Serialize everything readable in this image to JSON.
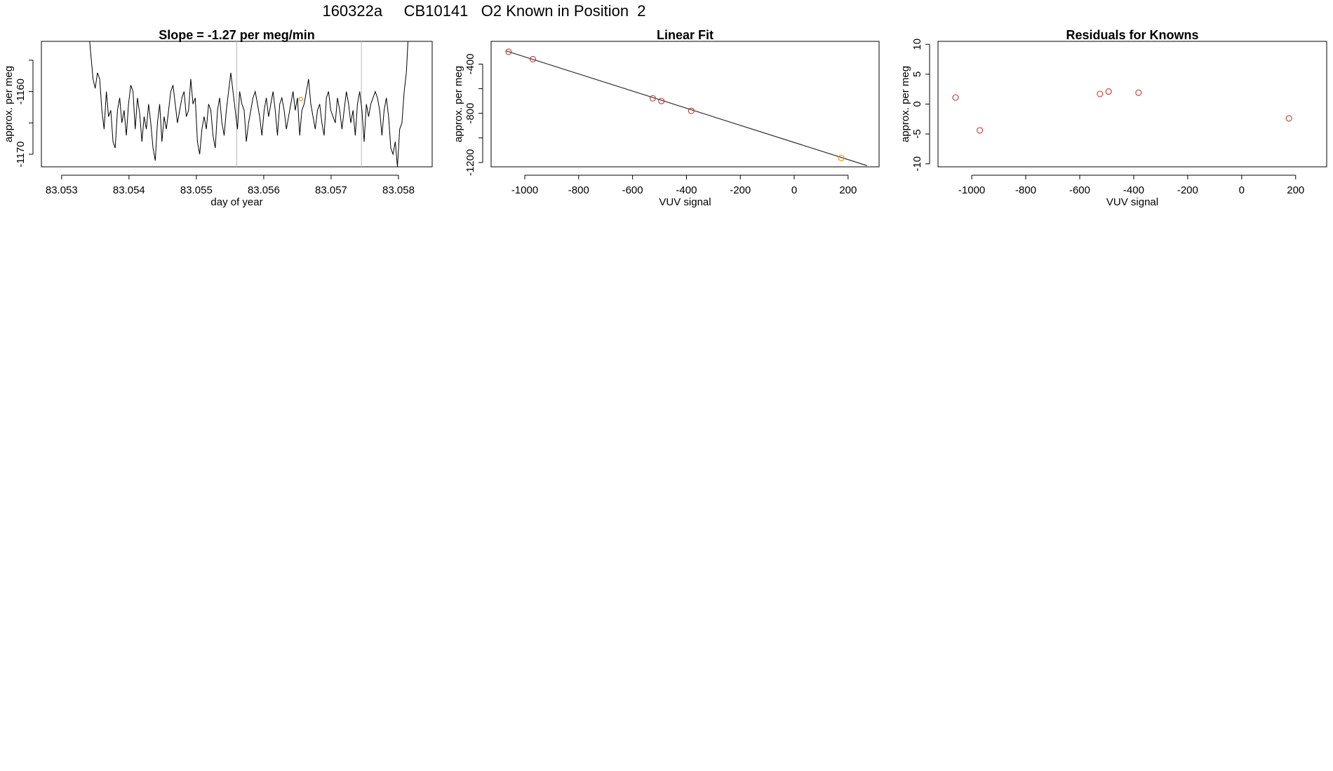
{
  "page_title": "160322a     CB10141   O2 Known in Position  2",
  "colors": {
    "axis": "#000000",
    "trace": "#000000",
    "fit_line": "#333333",
    "point": "#cc3333",
    "highlight": "#e69500",
    "marker_line": "#bbbbbb"
  },
  "chart_data": [
    {
      "type": "line",
      "title": "Slope =  -1.27  per meg/min",
      "xlabel": "day of year",
      "ylabel": "approx. per meg",
      "xlim": [
        83.0527,
        83.0585
      ],
      "ylim": [
        -1172,
        -1152
      ],
      "xticks": [
        83.053,
        83.054,
        83.055,
        83.056,
        83.057,
        83.058
      ],
      "xtick_labels": [
        "83.053",
        "83.054",
        "83.055",
        "83.056",
        "83.057",
        "83.058"
      ],
      "yticks": [
        -1170,
        -1165,
        -1160,
        -1155
      ],
      "ytick_labels": [
        "-1170",
        "",
        "-1160",
        ""
      ],
      "vertical_markers": [
        83.0556,
        83.05745
      ],
      "highlight_points": [
        {
          "x": 83.05655,
          "y": -1161.2
        }
      ],
      "series": [
        {
          "x_start": 83.0534,
          "x_end": 83.05815,
          "values": [
            -1150,
            -1154,
            -1158,
            -1159.5,
            -1157,
            -1158,
            -1163,
            -1166,
            -1160,
            -1164,
            -1163,
            -1168,
            -1169,
            -1163,
            -1161,
            -1165,
            -1163,
            -1167,
            -1162,
            -1159,
            -1160,
            -1166,
            -1161,
            -1163.5,
            -1168,
            -1164,
            -1166,
            -1162,
            -1165,
            -1169,
            -1171,
            -1165,
            -1162,
            -1168,
            -1164,
            -1166,
            -1163,
            -1160,
            -1159,
            -1162,
            -1165,
            -1163,
            -1161,
            -1160,
            -1164,
            -1163,
            -1158,
            -1162,
            -1161,
            -1168,
            -1170,
            -1166,
            -1164,
            -1166,
            -1162,
            -1163,
            -1167,
            -1169,
            -1163,
            -1161,
            -1165,
            -1167,
            -1163,
            -1160,
            -1157,
            -1160,
            -1163,
            -1166,
            -1160,
            -1162,
            -1163,
            -1168,
            -1165,
            -1163,
            -1161,
            -1160,
            -1162,
            -1164,
            -1167,
            -1163,
            -1161,
            -1164,
            -1162,
            -1160,
            -1163,
            -1167,
            -1162,
            -1161,
            -1163,
            -1166,
            -1164,
            -1162,
            -1160,
            -1163,
            -1161,
            -1167,
            -1163,
            -1162,
            -1160,
            -1158,
            -1162,
            -1164,
            -1166,
            -1163,
            -1162,
            -1165,
            -1167,
            -1161,
            -1160,
            -1163,
            -1164,
            -1165,
            -1161,
            -1163,
            -1166,
            -1163,
            -1160,
            -1162,
            -1165,
            -1163,
            -1167,
            -1162,
            -1160,
            -1163,
            -1168,
            -1162,
            -1164,
            -1162,
            -1161,
            -1160,
            -1161,
            -1163,
            -1167,
            -1163,
            -1161,
            -1164,
            -1169,
            -1170,
            -1168,
            -1172,
            -1166,
            -1165,
            -1160,
            -1157,
            -1150
          ]
        }
      ]
    },
    {
      "type": "scatter",
      "title": "Linear Fit",
      "xlabel": "VUV signal",
      "ylabel": "approx. per meg",
      "xlim": [
        -1125,
        315
      ],
      "ylim": [
        -1235,
        -215
      ],
      "xticks": [
        -1000,
        -800,
        -600,
        -400,
        -200,
        0,
        200
      ],
      "xtick_labels": [
        "-1000",
        "-800",
        "-600",
        "-400",
        "-200",
        "0",
        "200"
      ],
      "yticks": [
        -1200,
        -1000,
        -800,
        -600,
        -400
      ],
      "ytick_labels": [
        "-1200",
        "",
        "-800",
        "",
        "-400"
      ],
      "points": [
        {
          "x": -1060,
          "y": -300
        },
        {
          "x": -970,
          "y": -360
        },
        {
          "x": -525,
          "y": -678
        },
        {
          "x": -493,
          "y": -700
        },
        {
          "x": -382,
          "y": -780
        },
        {
          "x": 175,
          "y": -1163,
          "highlight": true
        }
      ],
      "fit_line": {
        "x1": -1070,
        "y1": -292,
        "x2": 270,
        "y2": -1225
      }
    },
    {
      "type": "scatter",
      "title": "Residuals for Knowns",
      "xlabel": "VUV signal",
      "ylabel": "approx. per meg",
      "xlim": [
        -1125,
        315
      ],
      "ylim": [
        -10.5,
        10.5
      ],
      "xticks": [
        -1000,
        -800,
        -600,
        -400,
        -200,
        0,
        200
      ],
      "xtick_labels": [
        "-1000",
        "-800",
        "-600",
        "-400",
        "-200",
        "0",
        "200"
      ],
      "yticks": [
        -10,
        -5,
        0,
        5,
        10
      ],
      "ytick_labels": [
        "-10",
        "-5",
        "0",
        "5",
        "10"
      ],
      "points": [
        {
          "x": -1060,
          "y": 1.1
        },
        {
          "x": -970,
          "y": -4.4
        },
        {
          "x": -525,
          "y": 1.7
        },
        {
          "x": -493,
          "y": 2.1
        },
        {
          "x": -382,
          "y": 1.9
        },
        {
          "x": 175,
          "y": -2.4
        }
      ]
    }
  ]
}
